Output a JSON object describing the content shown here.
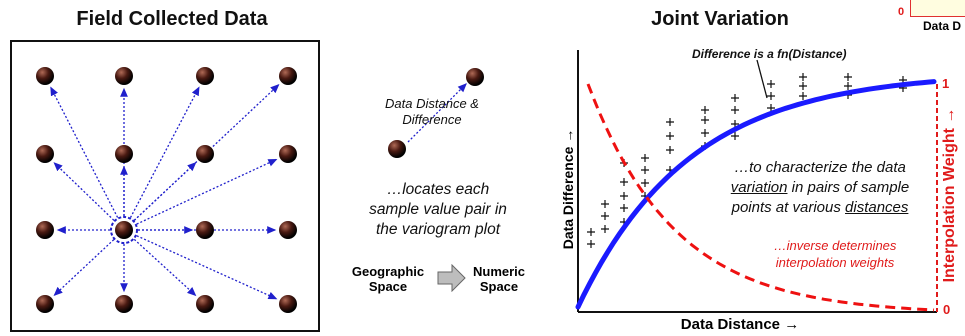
{
  "left": {
    "title": "Field Collected Data"
  },
  "middle": {
    "pair_label": [
      "Data Distance &",
      "Difference"
    ],
    "locates_text": [
      "…locates each",
      "sample value pair in",
      "the variogram plot"
    ],
    "geo_label": [
      "Geographic",
      "Space"
    ],
    "num_label": [
      "Numeric",
      "Space"
    ]
  },
  "right": {
    "title": "Joint Variation",
    "fn_label": "Difference is a fn(Distance)",
    "char_text": {
      "line1": "…to characterize the data",
      "line2_u": "variation",
      "line2_rest": " in pairs of sample",
      "line3_rest": "points at various ",
      "line3_u": "distances"
    },
    "inverse_text": [
      "…inverse determines",
      "interpolation weights"
    ],
    "xlabel": "Data Distance",
    "ylabel": "Data Difference",
    "y2label": "Interpolation Weight",
    "arrow": "→",
    "y2_top": "1",
    "y2_bottom": "0"
  },
  "inset": {
    "zero": "0",
    "label": "Data D"
  },
  "colors": {
    "fit_curve": "#1a1aff",
    "weight_curve": "#ee1111",
    "vectors": "#2020cc"
  }
}
